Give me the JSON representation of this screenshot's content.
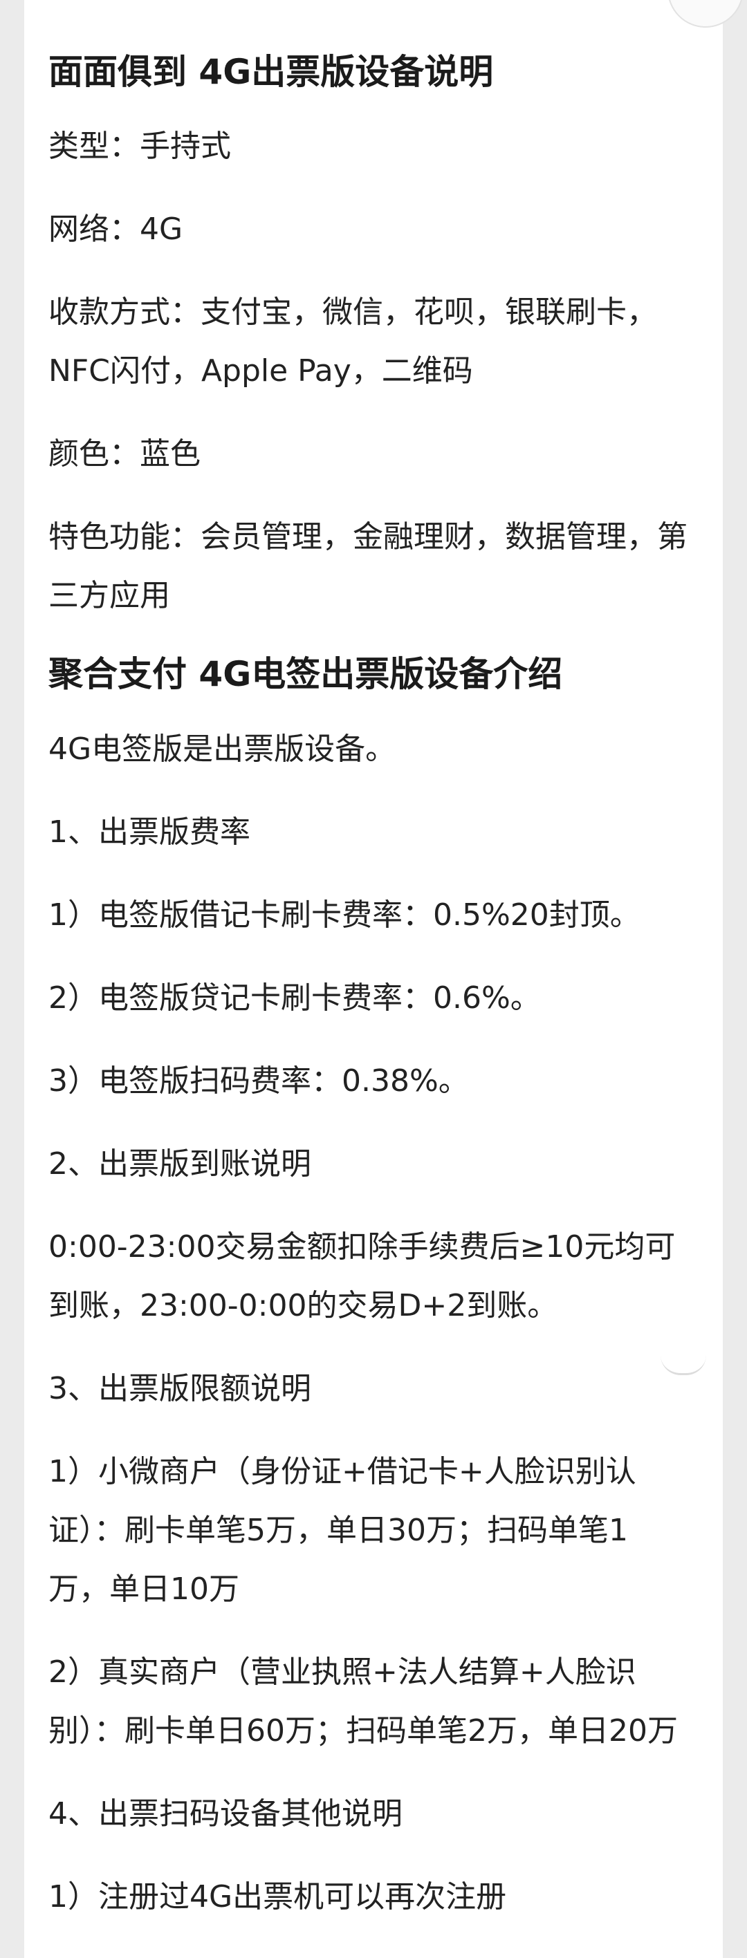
{
  "section1": {
    "title": "面面俱到 4G出票版设备说明",
    "lines": [
      "类型：手持式",
      "网络：4G",
      "收款方式：支付宝，微信，花呗，银联刷卡，",
      "NFC闪付，Apple Pay，二维码",
      "颜色：蓝色",
      "特色功能：会员管理，金融理财，数据管理，第",
      "三方应用"
    ]
  },
  "section2": {
    "title": "聚合支付 4G电签出票版设备介绍",
    "lines": [
      "4G电签版是出票版设备。",
      "1、出票版费率",
      "1）电签版借记卡刷卡费率：0.5%20封顶。",
      "2）电签版贷记卡刷卡费率：0.6%。",
      "3）电签版扫码费率：0.38%。",
      "2、出票版到账说明",
      "0:00-23:00交易金额扣除手续费后≥10元均可",
      "到账，23:00-0:00的交易D+2到账。",
      "3、出票版限额说明",
      "1）小微商户（身份证+借记卡+人脸识别认",
      "证）：刷卡单笔5万，单日30万；扫码单笔1",
      "万，单日10万",
      "2）真实商户（营业执照+法人结算+人脸识",
      "别）：刷卡单日60万；扫码单笔2万，单日20万",
      "4、出票扫码设备其他说明",
      "1）注册过4G出票机可以再次注册"
    ]
  }
}
